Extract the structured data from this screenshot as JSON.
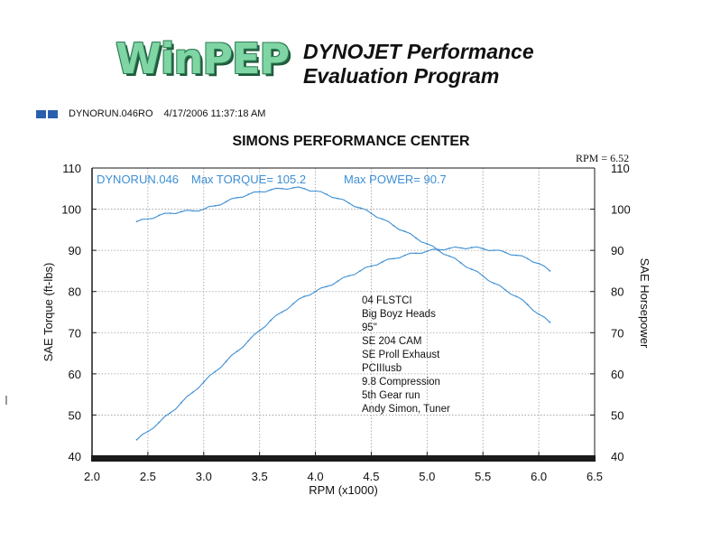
{
  "header": {
    "logo_text": "WinPEP",
    "brand_line1": "DYNOJET Performance",
    "brand_line2": "Evaluation Program",
    "run_label": "DYNORUN.046RO",
    "run_timestamp": "4/17/2006 11:37:18 AM",
    "rpm_readout": "RPM = 6.52"
  },
  "colors": {
    "series": "#3d8fd4",
    "frame": "#1a1a1a",
    "grid": "#9a9a9a",
    "run_swatch": "#2b5fae"
  },
  "chart_data": {
    "type": "line",
    "title": "SIMONS PERFORMANCE CENTER",
    "xlabel": "RPM (x1000)",
    "ylabel": "SAE Torque (ft-lbs)",
    "ylabel_right": "SAE Horsepower",
    "xlim": [
      2.0,
      6.5
    ],
    "ylim": [
      40,
      110
    ],
    "ylim_right": [
      40,
      110
    ],
    "x_ticks": [
      "2.0",
      "2.5",
      "3.0",
      "3.5",
      "4.0",
      "4.5",
      "5.0",
      "5.5",
      "6.0",
      "6.5"
    ],
    "y_ticks": [
      "40",
      "50",
      "60",
      "70",
      "80",
      "90",
      "100",
      "110"
    ],
    "y_ticks_right": [
      "40",
      "50",
      "60",
      "70",
      "80",
      "90",
      "100",
      "110"
    ],
    "grid": true,
    "legend_text": [
      "DYNORUN.046",
      "Max TORQUE= 105.2",
      "Max POWER= 90.7"
    ],
    "annotation_lines": [
      "04 FLSTCI",
      "Big Boyz Heads",
      "95\"",
      "SE 204 CAM",
      "SE Proll Exhaust",
      "PCIIIusb",
      "9.8 Compression",
      "5th Gear run",
      "Andy Simon, Tuner"
    ],
    "series": [
      {
        "axis": "left",
        "x": [
          2.4,
          2.5,
          2.6,
          2.7,
          2.8,
          2.9,
          3.0,
          3.1,
          3.2,
          3.3,
          3.4,
          3.5,
          3.6,
          3.7,
          3.8,
          3.9,
          4.0,
          4.1,
          4.2,
          4.3,
          4.4,
          4.5,
          4.6,
          4.7,
          4.8,
          4.9,
          5.0,
          5.1,
          5.2,
          5.3,
          5.4,
          5.5,
          5.6,
          5.7,
          5.8,
          5.9,
          6.0,
          6.1
        ],
        "values": [
          97.0,
          97.6,
          98.5,
          99.0,
          99.4,
          99.6,
          100.0,
          100.8,
          101.8,
          102.8,
          103.6,
          104.2,
          104.7,
          105.0,
          105.2,
          105.0,
          104.4,
          103.6,
          102.6,
          101.5,
          100.3,
          99.0,
          97.6,
          96.0,
          94.6,
          93.0,
          91.6,
          90.0,
          88.6,
          87.0,
          85.4,
          83.8,
          82.0,
          80.4,
          78.8,
          76.8,
          74.5,
          72.5
        ]
      },
      {
        "axis": "right",
        "x": [
          2.4,
          2.5,
          2.6,
          2.7,
          2.8,
          2.9,
          3.0,
          3.1,
          3.2,
          3.3,
          3.4,
          3.5,
          3.6,
          3.7,
          3.8,
          3.9,
          4.0,
          4.1,
          4.2,
          4.3,
          4.4,
          4.5,
          4.6,
          4.7,
          4.8,
          4.9,
          5.0,
          5.1,
          5.2,
          5.3,
          5.4,
          5.5,
          5.6,
          5.7,
          5.8,
          5.9,
          6.0,
          6.1
        ],
        "values": [
          44.0,
          46.0,
          48.2,
          50.5,
          53.0,
          55.5,
          58.0,
          60.5,
          63.0,
          65.5,
          68.0,
          70.5,
          73.0,
          75.0,
          77.0,
          78.8,
          80.0,
          81.2,
          82.5,
          83.8,
          85.0,
          86.2,
          87.2,
          88.0,
          88.8,
          89.3,
          89.8,
          90.2,
          90.5,
          90.6,
          90.7,
          90.4,
          90.0,
          89.5,
          88.8,
          88.0,
          86.8,
          85.0
        ]
      }
    ]
  }
}
